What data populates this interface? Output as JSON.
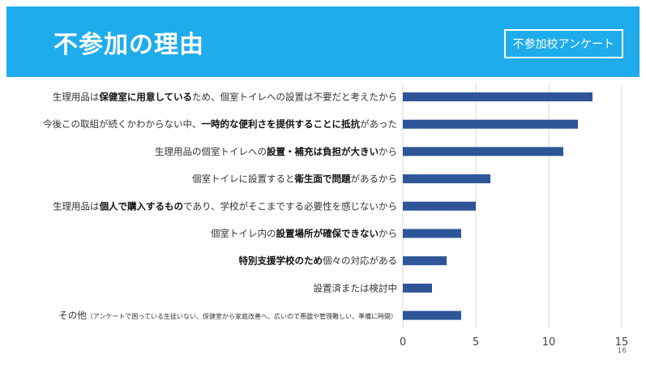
{
  "slide": {
    "title": "不参加の理由",
    "badge": "不参加校アンケート",
    "page_number": "16",
    "header_color": "#1eacec"
  },
  "chart_data": {
    "type": "bar",
    "orientation": "horizontal",
    "bar_color": "#2e5597",
    "categories": [
      "生理用品は保健室に用意しているため、個室トイレへの設置は不要だと考えたから",
      "今後この取組が続くかわからない中、一時的な便利さを提供することに抵抗があった",
      "生理用品の個室トイレへの設置・補充は負担が大きいから",
      "個室トイレに設置すると衛生面で問題があるから",
      "生理用品は個人で購入するものであり、学校がそこまでする必要性を感じないから",
      "個室トイレ内の設置場所が確保できないから",
      "特別支援学校のため個々の対応がある",
      "設置済または検討中",
      "その他（アンケートで困っている生徒いない、保健室から家庭改善へ、広いので悪戯や管理難しい、準備に時間）"
    ],
    "category_segments": [
      [
        [
          "生理用品は",
          false
        ],
        [
          "保健室に用意している",
          true
        ],
        [
          "ため、個室トイレへの設置は不要だと考えたから",
          false
        ]
      ],
      [
        [
          "今後この取組が続くかわからない中、",
          false
        ],
        [
          "一時的な便利さを提供することに抵抗",
          true
        ],
        [
          "があった",
          false
        ]
      ],
      [
        [
          "生理用品の個室トイレへの",
          false
        ],
        [
          "設置・補充は負担が大きい",
          true
        ],
        [
          "から",
          false
        ]
      ],
      [
        [
          "個室トイレに設置すると",
          false
        ],
        [
          "衛生面で問題",
          true
        ],
        [
          "があるから",
          false
        ]
      ],
      [
        [
          "生理用品は",
          false
        ],
        [
          "個人で購入するもの",
          true
        ],
        [
          "であり、学校がそこまでする必要性を感じないから",
          false
        ]
      ],
      [
        [
          "個室トイレ内の",
          false
        ],
        [
          "設置場所が確保できない",
          true
        ],
        [
          "から",
          false
        ]
      ],
      [
        [
          "特別支援学校のため",
          true
        ],
        [
          "個々の対応がある",
          false
        ]
      ],
      [
        [
          "設置済または検討中",
          false
        ]
      ],
      [
        [
          "その他",
          false
        ],
        [
          "（アンケートで困っている生徒いない、保健室から家庭改善へ、広いので悪戯や管理難しい、準備に時間）",
          false,
          "small"
        ]
      ]
    ],
    "values": [
      13,
      12,
      11,
      6,
      5,
      4,
      3,
      2,
      4
    ],
    "xlim": [
      0,
      15
    ],
    "xticks": [
      "0",
      "5",
      "10",
      "15"
    ],
    "grid": true
  }
}
